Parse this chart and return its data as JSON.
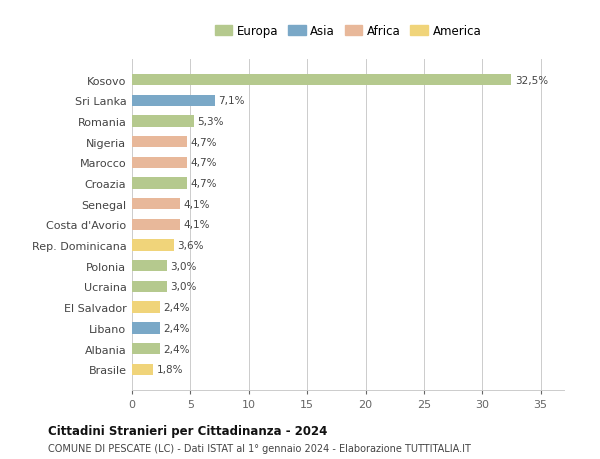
{
  "countries": [
    "Kosovo",
    "Sri Lanka",
    "Romania",
    "Nigeria",
    "Marocco",
    "Croazia",
    "Senegal",
    "Costa d'Avorio",
    "Rep. Dominicana",
    "Polonia",
    "Ucraina",
    "El Salvador",
    "Libano",
    "Albania",
    "Brasile"
  ],
  "values": [
    32.5,
    7.1,
    5.3,
    4.7,
    4.7,
    4.7,
    4.1,
    4.1,
    3.6,
    3.0,
    3.0,
    2.4,
    2.4,
    2.4,
    1.8
  ],
  "labels": [
    "32,5%",
    "7,1%",
    "5,3%",
    "4,7%",
    "4,7%",
    "4,7%",
    "4,1%",
    "4,1%",
    "3,6%",
    "3,0%",
    "3,0%",
    "2,4%",
    "2,4%",
    "2,4%",
    "1,8%"
  ],
  "continents": [
    "Europa",
    "Asia",
    "Europa",
    "Africa",
    "Africa",
    "Europa",
    "Africa",
    "Africa",
    "America",
    "Europa",
    "Europa",
    "America",
    "Asia",
    "Europa",
    "America"
  ],
  "continent_colors": {
    "Europa": "#b5c98e",
    "Asia": "#7aa8c7",
    "Africa": "#e8b89a",
    "America": "#f0d47a"
  },
  "legend_order": [
    "Europa",
    "Asia",
    "Africa",
    "America"
  ],
  "xlim": [
    0,
    37
  ],
  "xticks": [
    0,
    5,
    10,
    15,
    20,
    25,
    30,
    35
  ],
  "title": "Cittadini Stranieri per Cittadinanza - 2024",
  "subtitle": "COMUNE DI PESCATE (LC) - Dati ISTAT al 1° gennaio 2024 - Elaborazione TUTTITALIA.IT",
  "background_color": "#ffffff",
  "grid_color": "#cccccc",
  "bar_height": 0.55
}
